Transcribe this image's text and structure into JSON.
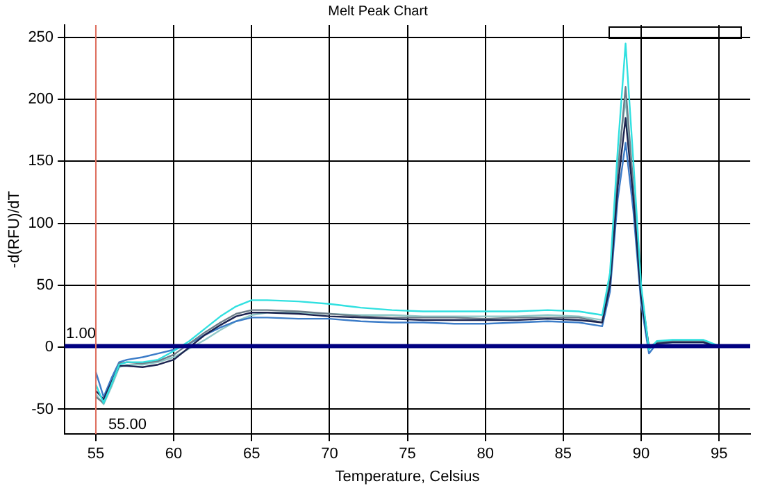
{
  "chart_data": {
    "type": "line",
    "title": "Melt Peak Chart",
    "xlabel": "Temperature, Celsius",
    "ylabel": "-d(RFU)/dT",
    "x": [
      55,
      55.5,
      56,
      56.5,
      57,
      58,
      59,
      60,
      61,
      62,
      63,
      64,
      65,
      66,
      68,
      70,
      72,
      74,
      76,
      78,
      80,
      82,
      84,
      86,
      87.5,
      88,
      88.5,
      89,
      89.5,
      90,
      90.5,
      91,
      92,
      94,
      95
    ],
    "series": [
      {
        "color": "#30e0e0",
        "values": [
          -30,
          -45,
          -30,
          -14,
          -12,
          -12,
          -10,
          -3,
          5,
          15,
          25,
          33,
          38,
          38,
          37,
          35,
          32,
          30,
          29,
          29,
          29,
          29,
          30,
          29,
          26,
          60,
          160,
          245,
          150,
          50,
          -2,
          5,
          6,
          6,
          1
        ]
      },
      {
        "color": "#1c2450",
        "values": [
          -35,
          -42,
          -28,
          -15,
          -15,
          -16,
          -14,
          -10,
          0,
          10,
          18,
          25,
          28,
          28,
          27,
          25,
          24,
          23,
          22,
          22,
          22,
          22,
          23,
          22,
          20,
          50,
          130,
          185,
          120,
          40,
          0,
          3,
          4,
          4,
          0
        ]
      },
      {
        "color": "#6c7c88",
        "values": [
          -40,
          -45,
          -30,
          -13,
          -12,
          -13,
          -11,
          -6,
          3,
          12,
          20,
          27,
          30,
          30,
          29,
          27,
          25,
          24,
          24,
          24,
          23,
          24,
          24,
          24,
          20,
          55,
          140,
          210,
          130,
          45,
          0,
          4,
          5,
          5,
          0
        ]
      },
      {
        "color": "#3c7cc8",
        "values": [
          -20,
          -40,
          -25,
          -12,
          -10,
          -8,
          -5,
          -2,
          3,
          10,
          16,
          21,
          24,
          24,
          23,
          23,
          21,
          20,
          20,
          19,
          19,
          20,
          21,
          20,
          17,
          45,
          120,
          165,
          110,
          35,
          -5,
          3,
          4,
          4,
          0
        ]
      },
      {
        "color": "#90c8c8",
        "values": [
          -38,
          -46,
          -32,
          -16,
          -14,
          -14,
          -12,
          -8,
          -1,
          6,
          14,
          21,
          26,
          28,
          28,
          27,
          26,
          26,
          25,
          25,
          25,
          25,
          26,
          25,
          22,
          55,
          150,
          200,
          125,
          45,
          0,
          4,
          5,
          5,
          0
        ]
      }
    ],
    "xlim": [
      53,
      97
    ],
    "xticks": [
      55,
      60,
      65,
      70,
      75,
      80,
      85,
      90,
      95
    ],
    "ylim": [
      -70,
      260
    ],
    "yticks": [
      -50,
      0,
      50,
      100,
      150,
      200,
      250
    ],
    "ref_lines": [
      {
        "axis": "y",
        "value": 1,
        "label": "1.00",
        "color": "#000080"
      },
      {
        "axis": "x",
        "value": 55,
        "label": "55.00",
        "color": "#e07060"
      }
    ],
    "grid": true,
    "legend": false,
    "marker": "none",
    "line_style": "solid"
  }
}
